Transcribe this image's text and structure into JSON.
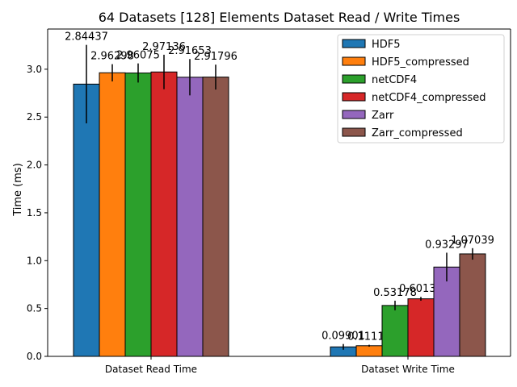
{
  "chart_data": {
    "type": "bar",
    "title": "64 Datasets [128] Elements Dataset Read / Write Times",
    "xlabel": "",
    "ylabel": "Time (ms)",
    "categories": [
      "Dataset Read Time",
      "Dataset Write Time"
    ],
    "ylim": [
      0,
      3.42
    ],
    "yticks": [
      "0.0",
      "0.5",
      "1.0",
      "1.5",
      "2.0",
      "2.5",
      "3.0"
    ],
    "grid": false,
    "legend_position": "top-right",
    "series": [
      {
        "name": "HDF5",
        "color": "#1f77b4",
        "values": [
          2.84437,
          0.09901
        ],
        "labels": [
          "2.84437",
          "0.09901"
        ],
        "err": [
          0.41,
          0.03
        ]
      },
      {
        "name": "HDF5_compressed",
        "color": "#ff7f0e",
        "values": [
          2.96298,
          0.11119
        ],
        "labels": [
          "2.96298",
          "0.11119"
        ],
        "err": [
          0.09,
          0.01
        ]
      },
      {
        "name": "netCDF4",
        "color": "#2ca02c",
        "values": [
          2.96075,
          0.53178
        ],
        "labels": [
          "2.96075",
          "0.53178"
        ],
        "err": [
          0.1,
          0.05
        ]
      },
      {
        "name": "netCDF4_compressed",
        "color": "#d62728",
        "values": [
          2.97136,
          0.60138
        ],
        "labels": [
          "2.97136",
          "0.60138"
        ],
        "err": [
          0.18,
          0.02
        ]
      },
      {
        "name": "Zarr",
        "color": "#9467bd",
        "values": [
          2.91653,
          0.93297
        ],
        "labels": [
          "2.91653",
          "0.93297"
        ],
        "err": [
          0.19,
          0.15
        ]
      },
      {
        "name": "Zarr_compressed",
        "color": "#8c564b",
        "values": [
          2.91796,
          1.07039
        ],
        "labels": [
          "2.91796",
          "1.07039"
        ],
        "err": [
          0.13,
          0.06
        ]
      }
    ]
  }
}
